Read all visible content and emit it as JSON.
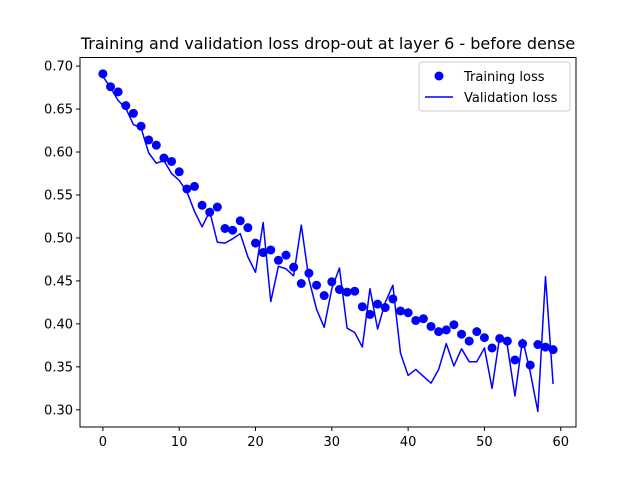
{
  "chart_data": {
    "type": "line",
    "title": "Training and validation loss drop-out at layer 6 - before dense",
    "xlabel": "",
    "ylabel": "",
    "xlim": [
      -3,
      62
    ],
    "ylim": [
      0.28,
      0.71
    ],
    "xticks": [
      0,
      10,
      20,
      30,
      40,
      50,
      60
    ],
    "yticks": [
      0.3,
      0.35,
      0.4,
      0.45,
      0.5,
      0.55,
      0.6,
      0.65,
      0.7
    ],
    "xtick_labels": [
      "0",
      "10",
      "20",
      "30",
      "40",
      "50",
      "60"
    ],
    "ytick_labels": [
      "0.30",
      "0.35",
      "0.40",
      "0.45",
      "0.50",
      "0.55",
      "0.60",
      "0.65",
      "0.70"
    ],
    "grid": false,
    "legend_position": "top-right",
    "x": [
      0,
      1,
      2,
      3,
      4,
      5,
      6,
      7,
      8,
      9,
      10,
      11,
      12,
      13,
      14,
      15,
      16,
      17,
      18,
      19,
      20,
      21,
      22,
      23,
      24,
      25,
      26,
      27,
      28,
      29,
      30,
      31,
      32,
      33,
      34,
      35,
      36,
      37,
      38,
      39,
      40,
      41,
      42,
      43,
      44,
      45,
      46,
      47,
      48,
      49,
      50,
      51,
      52,
      53,
      54,
      55,
      56,
      57,
      58,
      59
    ],
    "series": [
      {
        "name": "Training loss",
        "style": "markers",
        "color": "#0000ff",
        "values": [
          0.691,
          0.676,
          0.67,
          0.654,
          0.645,
          0.63,
          0.614,
          0.608,
          0.593,
          0.589,
          0.577,
          0.557,
          0.56,
          0.538,
          0.53,
          0.536,
          0.511,
          0.509,
          0.52,
          0.512,
          0.494,
          0.483,
          0.486,
          0.474,
          0.48,
          0.466,
          0.447,
          0.459,
          0.445,
          0.433,
          0.449,
          0.44,
          0.437,
          0.438,
          0.42,
          0.411,
          0.423,
          0.419,
          0.429,
          0.415,
          0.413,
          0.404,
          0.406,
          0.397,
          0.391,
          0.393,
          0.399,
          0.388,
          0.38,
          0.391,
          0.384,
          0.372,
          0.383,
          0.38,
          0.358,
          0.377,
          0.352,
          0.376,
          0.373,
          0.37
        ]
      },
      {
        "name": "Validation loss",
        "style": "line",
        "color": "#0000ff",
        "values": [
          0.688,
          0.675,
          0.66,
          0.651,
          0.632,
          0.628,
          0.599,
          0.587,
          0.59,
          0.575,
          0.567,
          0.554,
          0.531,
          0.513,
          0.531,
          0.495,
          0.494,
          0.499,
          0.505,
          0.478,
          0.46,
          0.518,
          0.426,
          0.467,
          0.464,
          0.456,
          0.515,
          0.452,
          0.417,
          0.396,
          0.441,
          0.465,
          0.395,
          0.39,
          0.373,
          0.441,
          0.394,
          0.425,
          0.445,
          0.366,
          0.34,
          0.347,
          0.339,
          0.331,
          0.347,
          0.377,
          0.351,
          0.371,
          0.356,
          0.356,
          0.372,
          0.325,
          0.385,
          0.375,
          0.316,
          0.382,
          0.344,
          0.298,
          0.455,
          0.33
        ]
      }
    ]
  }
}
